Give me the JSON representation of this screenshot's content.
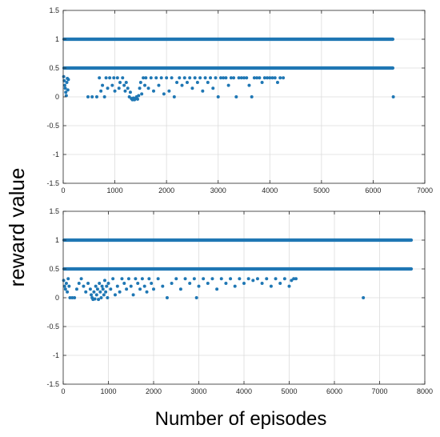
{
  "figure": {
    "ylabel": "reward value",
    "xlabel": "Number of episodes"
  },
  "colors": {
    "marker": "#1f77b4",
    "grid": "#dcdcdc",
    "axis": "#262626"
  },
  "chart_data": [
    {
      "type": "scatter",
      "title": "",
      "xlim": [
        0,
        7000
      ],
      "ylim": [
        -1.5,
        1.5
      ],
      "xticks": [
        0,
        1000,
        2000,
        3000,
        4000,
        5000,
        6000,
        7000
      ],
      "yticks": [
        -1.5,
        -1,
        -0.5,
        0,
        0.5,
        1,
        1.5
      ],
      "grid": true,
      "bands": [
        {
          "y": 1.0,
          "x": [
            0,
            6380
          ]
        },
        {
          "y": 0.5,
          "x": [
            0,
            6380
          ]
        }
      ],
      "series": [
        {
          "points": [
            [
              10,
              0.35
            ],
            [
              20,
              0.28
            ],
            [
              30,
              0.2
            ],
            [
              40,
              0.15
            ],
            [
              50,
              0.08
            ],
            [
              60,
              0.02
            ],
            [
              70,
              0.25
            ],
            [
              80,
              0.32
            ],
            [
              90,
              0.12
            ],
            [
              100,
              0.3
            ],
            [
              480,
              0.0
            ],
            [
              560,
              0.0
            ],
            [
              650,
              0.0
            ],
            [
              700,
              0.33
            ],
            [
              730,
              0.1
            ],
            [
              760,
              0.2
            ],
            [
              800,
              0.0
            ],
            [
              830,
              0.33
            ],
            [
              860,
              0.15
            ],
            [
              900,
              0.33
            ],
            [
              950,
              0.2
            ],
            [
              980,
              0.33
            ],
            [
              1000,
              0.1
            ],
            [
              1050,
              0.33
            ],
            [
              1080,
              0.15
            ],
            [
              1100,
              0.25
            ],
            [
              1150,
              0.33
            ],
            [
              1180,
              0.2
            ],
            [
              1200,
              0.1
            ],
            [
              1220,
              0.25
            ],
            [
              1250,
              0.15
            ],
            [
              1280,
              0.0
            ],
            [
              1300,
              0.08
            ],
            [
              1320,
              -0.03
            ],
            [
              1340,
              -0.05
            ],
            [
              1360,
              -0.02
            ],
            [
              1380,
              -0.05
            ],
            [
              1400,
              -0.03
            ],
            [
              1420,
              0.0
            ],
            [
              1440,
              -0.04
            ],
            [
              1460,
              0.02
            ],
            [
              1480,
              0.15
            ],
            [
              1500,
              0.25
            ],
            [
              1520,
              0.05
            ],
            [
              1550,
              0.33
            ],
            [
              1580,
              0.2
            ],
            [
              1600,
              0.33
            ],
            [
              1650,
              0.15
            ],
            [
              1700,
              0.33
            ],
            [
              1750,
              0.1
            ],
            [
              1800,
              0.33
            ],
            [
              1850,
              0.2
            ],
            [
              1900,
              0.33
            ],
            [
              1950,
              0.05
            ],
            [
              2000,
              0.33
            ],
            [
              2050,
              0.1
            ],
            [
              2100,
              0.33
            ],
            [
              2150,
              0.0
            ],
            [
              2200,
              0.25
            ],
            [
              2250,
              0.33
            ],
            [
              2300,
              0.2
            ],
            [
              2350,
              0.33
            ],
            [
              2400,
              0.25
            ],
            [
              2450,
              0.33
            ],
            [
              2500,
              0.15
            ],
            [
              2550,
              0.33
            ],
            [
              2600,
              0.25
            ],
            [
              2650,
              0.33
            ],
            [
              2700,
              0.1
            ],
            [
              2750,
              0.33
            ],
            [
              2800,
              0.25
            ],
            [
              2850,
              0.33
            ],
            [
              2900,
              0.15
            ],
            [
              2950,
              0.33
            ],
            [
              3000,
              0.0
            ],
            [
              3050,
              0.33
            ],
            [
              3100,
              0.33
            ],
            [
              3150,
              0.33
            ],
            [
              3200,
              0.2
            ],
            [
              3250,
              0.33
            ],
            [
              3300,
              0.33
            ],
            [
              3350,
              0.0
            ],
            [
              3400,
              0.33
            ],
            [
              3450,
              0.33
            ],
            [
              3500,
              0.33
            ],
            [
              3550,
              0.33
            ],
            [
              3600,
              0.2
            ],
            [
              3650,
              0.0
            ],
            [
              3700,
              0.33
            ],
            [
              3750,
              0.33
            ],
            [
              3800,
              0.33
            ],
            [
              3850,
              0.25
            ],
            [
              3900,
              0.33
            ],
            [
              3950,
              0.33
            ],
            [
              4000,
              0.33
            ],
            [
              4050,
              0.33
            ],
            [
              4100,
              0.33
            ],
            [
              4150,
              0.25
            ],
            [
              4200,
              0.33
            ],
            [
              4260,
              0.33
            ],
            [
              6390,
              0.0
            ]
          ]
        }
      ]
    },
    {
      "type": "scatter",
      "title": "",
      "xlim": [
        0,
        8000
      ],
      "ylim": [
        -1.5,
        1.5
      ],
      "xticks": [
        0,
        1000,
        2000,
        3000,
        4000,
        5000,
        6000,
        7000,
        8000
      ],
      "yticks": [
        -1.5,
        -1,
        -0.5,
        0,
        0.5,
        1,
        1.5
      ],
      "grid": true,
      "bands": [
        {
          "y": 1.0,
          "x": [
            0,
            7700
          ]
        },
        {
          "y": 0.5,
          "x": [
            0,
            7700
          ]
        }
      ],
      "series": [
        {
          "points": [
            [
              10,
              0.3
            ],
            [
              30,
              0.2
            ],
            [
              50,
              0.15
            ],
            [
              70,
              0.25
            ],
            [
              90,
              0.1
            ],
            [
              110,
              0.33
            ],
            [
              130,
              0.2
            ],
            [
              150,
              0.0
            ],
            [
              200,
              0.0
            ],
            [
              250,
              0.0
            ],
            [
              300,
              0.15
            ],
            [
              350,
              0.25
            ],
            [
              400,
              0.33
            ],
            [
              450,
              0.2
            ],
            [
              500,
              0.1
            ],
            [
              550,
              0.25
            ],
            [
              600,
              0.15
            ],
            [
              620,
              0.05
            ],
            [
              640,
              0.0
            ],
            [
              660,
              -0.03
            ],
            [
              680,
              0.1
            ],
            [
              700,
              -0.02
            ],
            [
              720,
              0.2
            ],
            [
              740,
              0.05
            ],
            [
              760,
              0.15
            ],
            [
              780,
              -0.03
            ],
            [
              800,
              0.25
            ],
            [
              820,
              0.1
            ],
            [
              840,
              0.0
            ],
            [
              860,
              0.2
            ],
            [
              880,
              0.15
            ],
            [
              900,
              0.05
            ],
            [
              920,
              0.3
            ],
            [
              940,
              0.1
            ],
            [
              960,
              0.2
            ],
            [
              980,
              0.0
            ],
            [
              1000,
              0.25
            ],
            [
              1050,
              0.15
            ],
            [
              1100,
              0.33
            ],
            [
              1150,
              0.05
            ],
            [
              1200,
              0.2
            ],
            [
              1250,
              0.1
            ],
            [
              1300,
              0.33
            ],
            [
              1350,
              0.25
            ],
            [
              1400,
              0.15
            ],
            [
              1450,
              0.33
            ],
            [
              1500,
              0.2
            ],
            [
              1550,
              0.05
            ],
            [
              1600,
              0.33
            ],
            [
              1650,
              0.25
            ],
            [
              1700,
              0.15
            ],
            [
              1750,
              0.33
            ],
            [
              1800,
              0.2
            ],
            [
              1850,
              0.1
            ],
            [
              1900,
              0.33
            ],
            [
              1950,
              0.25
            ],
            [
              2000,
              0.15
            ],
            [
              2100,
              0.33
            ],
            [
              2200,
              0.2
            ],
            [
              2300,
              0.0
            ],
            [
              2400,
              0.25
            ],
            [
              2500,
              0.33
            ],
            [
              2600,
              0.15
            ],
            [
              2700,
              0.33
            ],
            [
              2800,
              0.25
            ],
            [
              2900,
              0.33
            ],
            [
              2950,
              0.0
            ],
            [
              3000,
              0.2
            ],
            [
              3100,
              0.33
            ],
            [
              3200,
              0.25
            ],
            [
              3300,
              0.33
            ],
            [
              3400,
              0.15
            ],
            [
              3500,
              0.33
            ],
            [
              3600,
              0.25
            ],
            [
              3700,
              0.33
            ],
            [
              3800,
              0.2
            ],
            [
              3900,
              0.33
            ],
            [
              4000,
              0.25
            ],
            [
              4100,
              0.33
            ],
            [
              4200,
              0.3
            ],
            [
              4300,
              0.33
            ],
            [
              4400,
              0.25
            ],
            [
              4500,
              0.33
            ],
            [
              4600,
              0.2
            ],
            [
              4700,
              0.33
            ],
            [
              4800,
              0.25
            ],
            [
              4900,
              0.33
            ],
            [
              5000,
              0.2
            ],
            [
              5050,
              0.3
            ],
            [
              5100,
              0.33
            ],
            [
              5150,
              0.33
            ],
            [
              6640,
              0.0
            ]
          ]
        }
      ]
    }
  ]
}
